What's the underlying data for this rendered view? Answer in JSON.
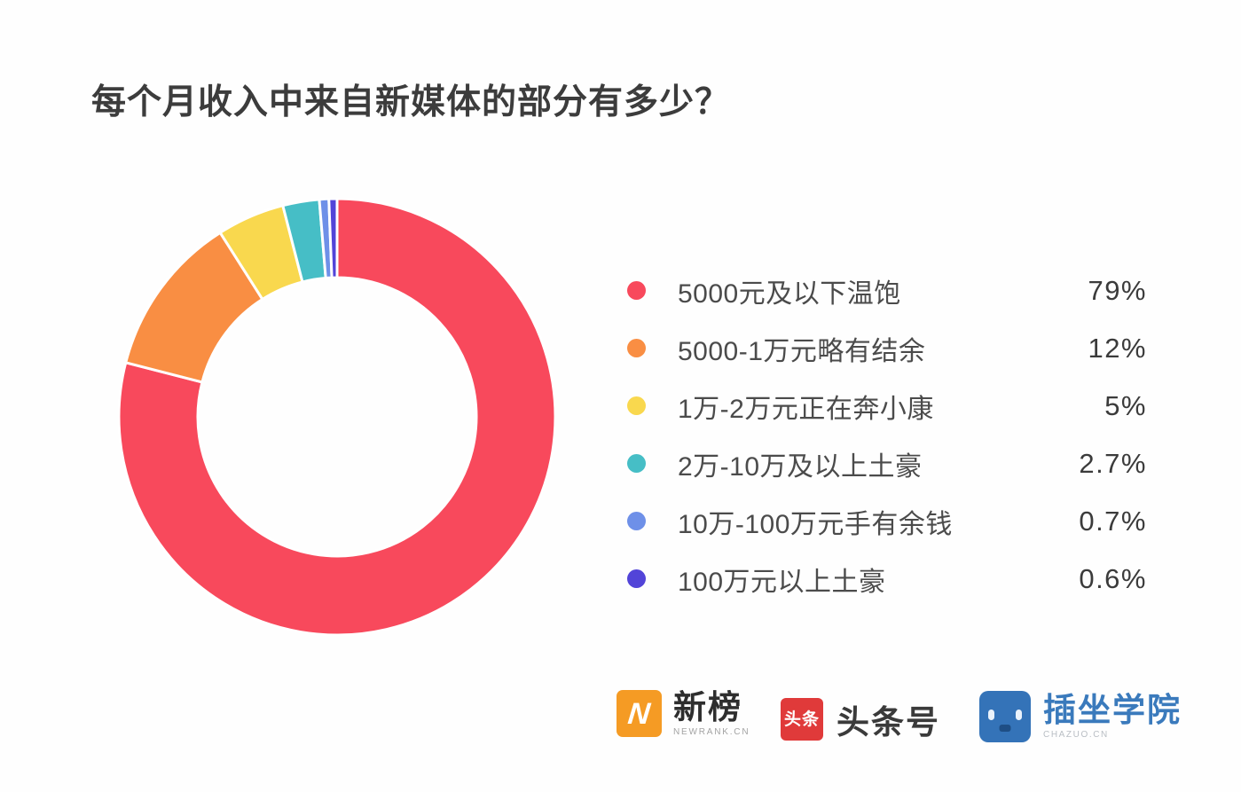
{
  "title": "每个月收入中来自新媒体的部分有多少？",
  "chart_data": {
    "type": "pie",
    "subtype": "donut",
    "title": "每个月收入中来自新媒体的部分有多少？",
    "legend_position": "right",
    "start_angle_deg": -90,
    "direction": "clockwise",
    "inner_radius_ratio": 0.64,
    "gap_stroke_color": "#ffffff",
    "segments": [
      {
        "label": "5000元及以下温饱",
        "value": 79,
        "display": "79%",
        "color": "#f8495c"
      },
      {
        "label": "5000-1万元略有结余",
        "value": 12,
        "display": "12%",
        "color": "#f98e43"
      },
      {
        "label": "1万-2万元正在奔小康",
        "value": 5,
        "display": "5%",
        "color": "#f9d84e"
      },
      {
        "label": "2万-10万及以上土豪",
        "value": 2.7,
        "display": "2.7%",
        "color": "#46bec6"
      },
      {
        "label": "10万-100万元手有余钱",
        "value": 0.7,
        "display": "0.7%",
        "color": "#6e90e8"
      },
      {
        "label": "100万元以上土豪",
        "value": 0.6,
        "display": "0.6%",
        "color": "#5244d8"
      }
    ]
  },
  "footer": {
    "newrank": {
      "name": "新榜",
      "subtext": "NEWRANK.CN",
      "badge_glyph": "N",
      "badge_color": "#f59b24"
    },
    "toutiao": {
      "name": "头条号",
      "badge_glyph": "头条",
      "badge_color": "#e03a3a"
    },
    "chazuo": {
      "name": "插坐学院",
      "subtext": "CHAZUO.CN",
      "badge_color": "#3473b8"
    }
  }
}
